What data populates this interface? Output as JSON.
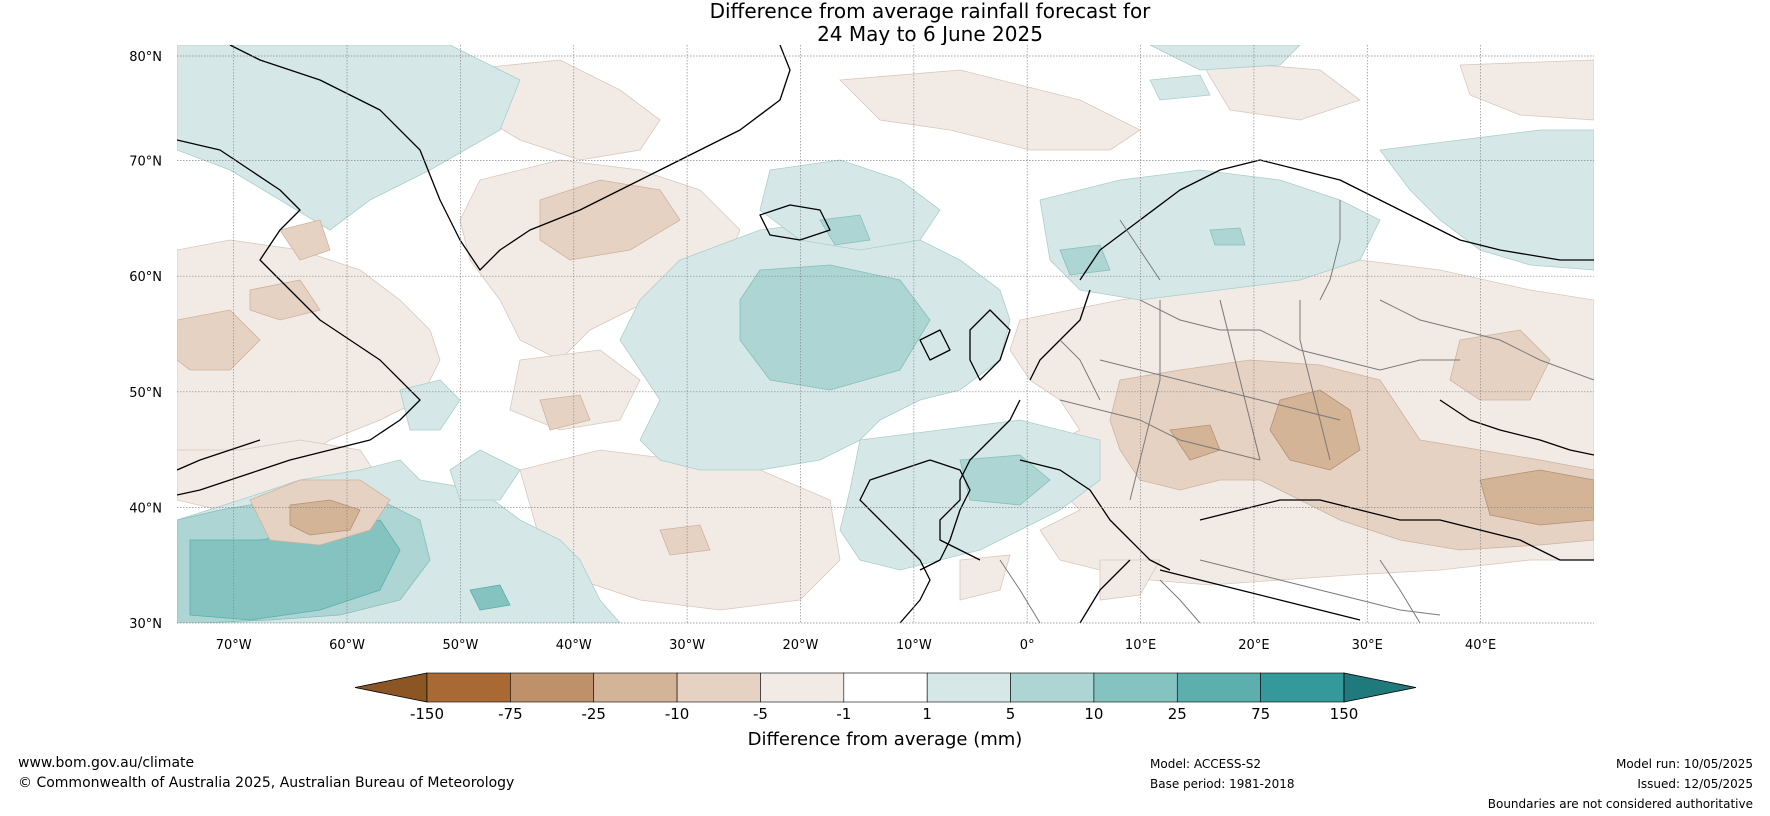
{
  "title": {
    "line1": "Difference from average rainfall forecast for",
    "line2": "24 May to 6 June 2025"
  },
  "map": {
    "lat_labels": [
      "80°N",
      "70°N",
      "60°N",
      "50°N",
      "40°N",
      "30°N"
    ],
    "lon_labels": [
      "70°W",
      "60°W",
      "50°W",
      "40°W",
      "30°W",
      "20°W",
      "10°W",
      "0°",
      "10°E",
      "20°E",
      "30°E",
      "40°E"
    ],
    "lat_range": [
      30,
      80
    ],
    "lon_range": [
      -75,
      50
    ],
    "gridlines": true,
    "regions": [
      {
        "name": "Labrador Sea / Baffin Bay",
        "category": "1 to 5"
      },
      {
        "name": "Greenland east coast",
        "category": "-10 to -5"
      },
      {
        "name": "Central North Atlantic (around 55°N 20°W)",
        "category": "5 to 10"
      },
      {
        "name": "Western North Atlantic south of Nova Scotia",
        "category": "10 to 25"
      },
      {
        "name": "Iberian Peninsula",
        "category": "1 to 10"
      },
      {
        "name": "Central and Eastern Europe",
        "category": "-25 to -5"
      },
      {
        "name": "Black Sea / Turkey",
        "category": "-25 to -10"
      },
      {
        "name": "Scandinavia",
        "category": "1 to 5"
      },
      {
        "name": "Western Russia",
        "category": "1 to 5"
      }
    ]
  },
  "colorbar": {
    "tick_labels": [
      "-150",
      "-75",
      "-25",
      "-10",
      "-5",
      "-1",
      "1",
      "5",
      "10",
      "25",
      "75",
      "150"
    ],
    "colors": [
      "#a96935",
      "#be916a",
      "#d3b497",
      "#e6d2c3",
      "#f2ebe5",
      "#ffffff",
      "#d5e8e7",
      "#acd5d3",
      "#84c3c0",
      "#5cafac",
      "#33999a"
    ],
    "extend_low_color": "#8c5624",
    "extend_high_color": "#20797b",
    "title": "Difference from average (mm)"
  },
  "footer": {
    "website": "www.bom.gov.au/climate",
    "copyright": "© Commonwealth of Australia 2025, Australian Bureau of Meteorology",
    "model": "Model: ACCESS-S2",
    "base_period": "Base period: 1981-2018",
    "model_run": "Model run: 10/05/2025",
    "issued": "Issued: 12/05/2025",
    "disclaimer": "Boundaries are not considered authoritative"
  }
}
